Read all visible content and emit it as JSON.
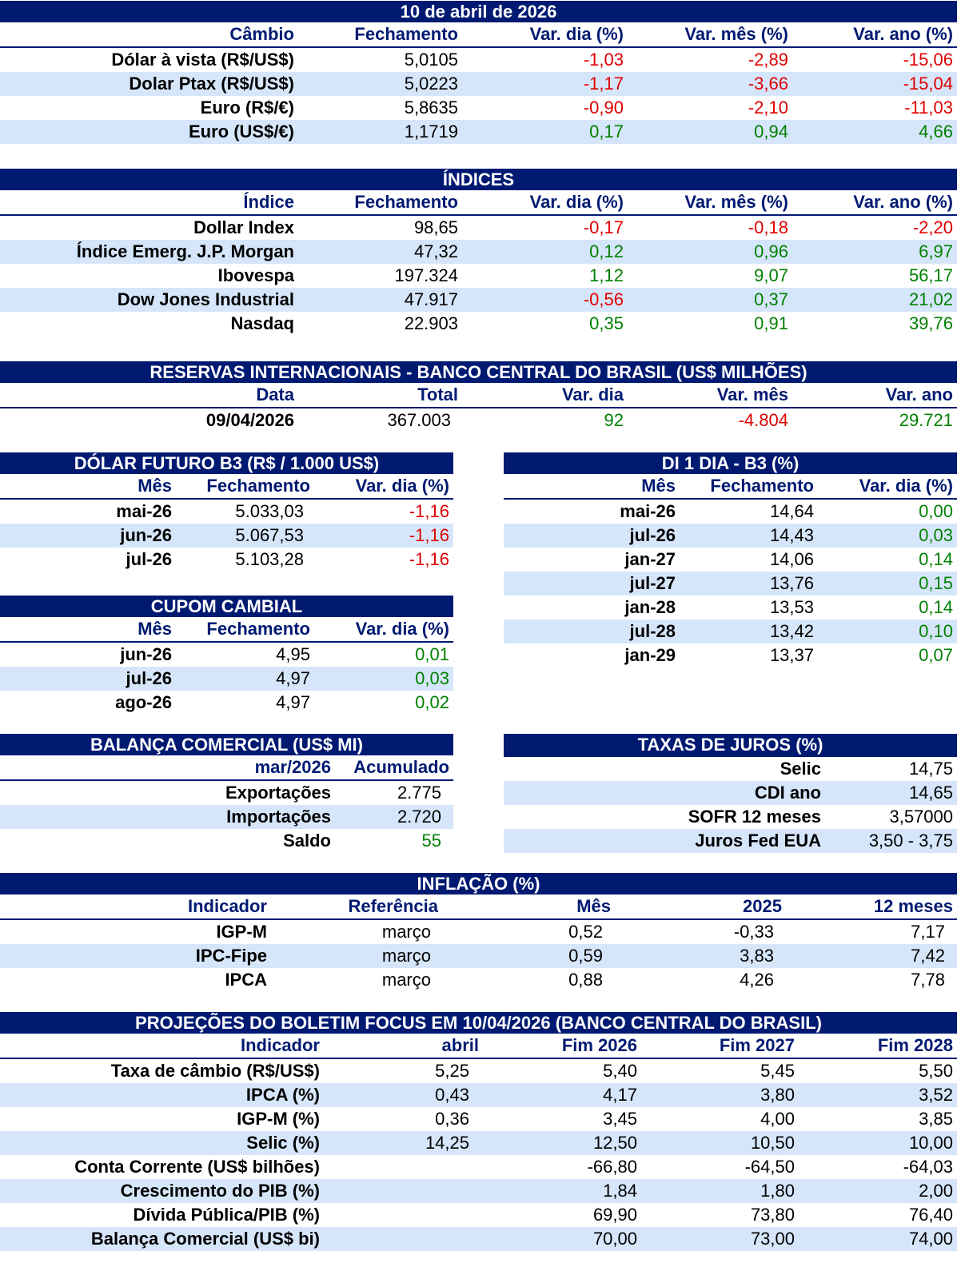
{
  "header_date": "10 de abril de 2026",
  "cambio": {
    "headers": [
      "Câmbio",
      "Fechamento",
      "Var. dia (%)",
      "Var. mês (%)",
      "Var. ano (%)"
    ],
    "rows": [
      {
        "label": "Dólar à vista (R$/US$)",
        "fech": "5,0105",
        "dia": "-1,03",
        "mes": "-2,89",
        "ano": "-15,06"
      },
      {
        "label": "Dolar Ptax (R$/US$)",
        "fech": "5,0223",
        "dia": "-1,17",
        "mes": "-3,66",
        "ano": "-15,04"
      },
      {
        "label": "Euro (R$/€)",
        "fech": "5,8635",
        "dia": "-0,90",
        "mes": "-2,10",
        "ano": "-11,03"
      },
      {
        "label": "Euro (US$/€)",
        "fech": "1,1719",
        "dia": "0,17",
        "mes": "0,94",
        "ano": "4,66"
      }
    ]
  },
  "indices": {
    "title": "ÍNDICES",
    "headers": [
      "Índice",
      "Fechamento",
      "Var. dia (%)",
      "Var. mês (%)",
      "Var. ano (%)"
    ],
    "rows": [
      {
        "label": "Dollar Index",
        "fech": "98,65",
        "dia": "-0,17",
        "mes": "-0,18",
        "ano": "-2,20"
      },
      {
        "label": "Índice Emerg. J.P. Morgan",
        "fech": "47,32",
        "dia": "0,12",
        "mes": "0,96",
        "ano": "6,97"
      },
      {
        "label": "Ibovespa",
        "fech": "197.324",
        "dia": "1,12",
        "mes": "9,07",
        "ano": "56,17"
      },
      {
        "label": "Dow Jones Industrial",
        "fech": "47.917",
        "dia": "-0,56",
        "mes": "0,37",
        "ano": "21,02"
      },
      {
        "label": "Nasdaq",
        "fech": "22.903",
        "dia": "0,35",
        "mes": "0,91",
        "ano": "39,76"
      }
    ]
  },
  "reservas": {
    "title": "RESERVAS INTERNACIONAIS - BANCO CENTRAL DO BRASIL (US$ MILHÕES)",
    "headers": [
      "Data",
      "Total",
      "Var. dia",
      "Var. mês",
      "Var. ano"
    ],
    "row": {
      "data": "09/04/2026",
      "total": "367.003",
      "dia": "92",
      "mes": "-4.804",
      "ano": "29.721"
    }
  },
  "dolar_futuro": {
    "title": "DÓLAR FUTURO B3 (R$ / 1.000 US$)",
    "headers": [
      "Mês",
      "Fechamento",
      "Var. dia (%)"
    ],
    "rows": [
      {
        "mes": "mai-26",
        "fech": "5.033,03",
        "dia": "-1,16"
      },
      {
        "mes": "jun-26",
        "fech": "5.067,53",
        "dia": "-1,16"
      },
      {
        "mes": "jul-26",
        "fech": "5.103,28",
        "dia": "-1,16"
      }
    ]
  },
  "di1": {
    "title": "DI 1 DIA - B3 (%)",
    "headers": [
      "Mês",
      "Fechamento",
      "Var. dia (%)"
    ],
    "rows": [
      {
        "mes": "mai-26",
        "fech": "14,64",
        "dia": "0,00"
      },
      {
        "mes": "jul-26",
        "fech": "14,43",
        "dia": "0,03"
      },
      {
        "mes": "jan-27",
        "fech": "14,06",
        "dia": "0,14"
      },
      {
        "mes": "jul-27",
        "fech": "13,76",
        "dia": "0,15"
      },
      {
        "mes": "jan-28",
        "fech": "13,53",
        "dia": "0,14"
      },
      {
        "mes": "jul-28",
        "fech": "13,42",
        "dia": "0,10"
      },
      {
        "mes": "jan-29",
        "fech": "13,37",
        "dia": "0,07"
      }
    ]
  },
  "cupom": {
    "title": "CUPOM CAMBIAL",
    "headers": [
      "Mês",
      "Fechamento",
      "Var. dia (%)"
    ],
    "rows": [
      {
        "mes": "jun-26",
        "fech": "4,95",
        "dia": "0,01"
      },
      {
        "mes": "jul-26",
        "fech": "4,97",
        "dia": "0,03"
      },
      {
        "mes": "ago-26",
        "fech": "4,97",
        "dia": "0,02"
      }
    ]
  },
  "balanca": {
    "title": "BALANÇA COMERCIAL (US$ MI)",
    "headers": [
      "mar/2026",
      "Acumulado"
    ],
    "rows": [
      {
        "label": "Exportações",
        "val": "2.775"
      },
      {
        "label": "Importações",
        "val": "2.720"
      },
      {
        "label": "Saldo",
        "val": "55"
      }
    ]
  },
  "juros": {
    "title": "TAXAS DE JUROS (%)",
    "rows": [
      {
        "label": "Selic",
        "val": "14,75"
      },
      {
        "label": "CDI ano",
        "val": "14,65"
      },
      {
        "label": "SOFR 12 meses",
        "val": "3,57000"
      },
      {
        "label": "Juros Fed EUA",
        "val": "3,50 - 3,75"
      }
    ]
  },
  "inflacao": {
    "title": "INFLAÇÃO (%)",
    "headers": [
      "Indicador",
      "Referência",
      "Mês",
      "2025",
      "12 meses"
    ],
    "rows": [
      {
        "label": "IGP-M",
        "ref": "março",
        "mes": "0,52",
        "ano": "-0,33",
        "m12": "7,17"
      },
      {
        "label": "IPC-Fipe",
        "ref": "março",
        "mes": "0,59",
        "ano": "3,83",
        "m12": "7,42"
      },
      {
        "label": "IPCA",
        "ref": "março",
        "mes": "0,88",
        "ano": "4,26",
        "m12": "7,78"
      }
    ]
  },
  "focus": {
    "title": "PROJEÇÕES DO BOLETIM FOCUS EM  10/04/2026 (BANCO CENTRAL DO BRASIL)",
    "headers": [
      "Indicador",
      "abril",
      "Fim 2026",
      "Fim 2027",
      "Fim 2028"
    ],
    "rows": [
      {
        "label": "Taxa de câmbio (R$/US$)",
        "abr": "5,25",
        "y26": "5,40",
        "y27": "5,45",
        "y28": "5,50"
      },
      {
        "label": "IPCA (%)",
        "abr": "0,43",
        "y26": "4,17",
        "y27": "3,80",
        "y28": "3,52"
      },
      {
        "label": "IGP-M (%)",
        "abr": "0,36",
        "y26": "3,45",
        "y27": "4,00",
        "y28": "3,85"
      },
      {
        "label": "Selic (%)",
        "abr": "14,25",
        "y26": "12,50",
        "y27": "10,50",
        "y28": "10,00"
      },
      {
        "label": "Conta Corrente (US$ bilhões)",
        "abr": "",
        "y26": "-66,80",
        "y27": "-64,50",
        "y28": "-64,03"
      },
      {
        "label": "Crescimento do PIB (%)",
        "abr": "",
        "y26": "1,84",
        "y27": "1,80",
        "y28": "2,00"
      },
      {
        "label": "Dívida Pública/PIB (%)",
        "abr": "",
        "y26": "69,90",
        "y27": "73,80",
        "y28": "76,40"
      },
      {
        "label": "Balança Comercial (US$ bi)",
        "abr": "",
        "y26": "70,00",
        "y27": "73,00",
        "y28": "74,00"
      }
    ]
  },
  "colors": {
    "header_bg": "#001a72",
    "stripe": "#d6e6fa",
    "negative": "#e00000",
    "positive": "#008000"
  }
}
